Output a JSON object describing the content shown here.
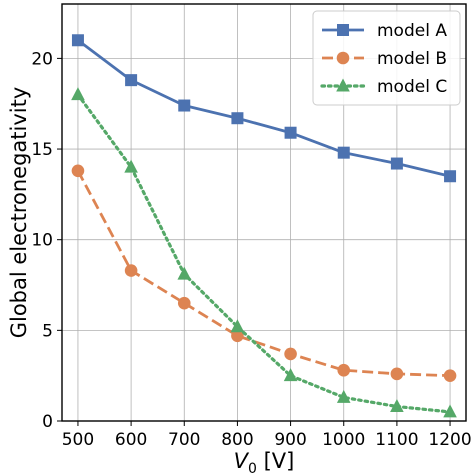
{
  "chart_data": {
    "type": "line",
    "xlabel_var": "V",
    "xlabel_sub": "0",
    "xlabel_unit": " [V]",
    "ylabel": "Global electronegativity",
    "x": [
      500,
      600,
      700,
      800,
      900,
      1000,
      1100,
      1200
    ],
    "xlim": [
      470,
      1230
    ],
    "ylim": [
      0,
      23
    ],
    "xticks": [
      "500",
      "600",
      "700",
      "800",
      "900",
      "1000",
      "1100",
      "1200"
    ],
    "yticks": [
      "0",
      "5",
      "10",
      "15",
      "20"
    ],
    "grid": true,
    "legend_position": "top-right",
    "series": [
      {
        "name": "model A",
        "values": [
          21.0,
          18.8,
          17.4,
          16.7,
          15.9,
          14.8,
          14.2,
          13.5
        ],
        "color": "#4c72b0",
        "marker": "square",
        "line_style": "solid"
      },
      {
        "name": "model B",
        "values": [
          13.8,
          8.3,
          6.5,
          4.7,
          3.7,
          2.8,
          2.6,
          2.5
        ],
        "color": "#dd8452",
        "marker": "circle",
        "line_style": "dashed"
      },
      {
        "name": "model C",
        "values": [
          18.0,
          14.0,
          8.1,
          5.2,
          2.5,
          1.3,
          0.8,
          0.5
        ],
        "color": "#55a868",
        "marker": "triangle",
        "line_style": "dotted"
      }
    ]
  }
}
